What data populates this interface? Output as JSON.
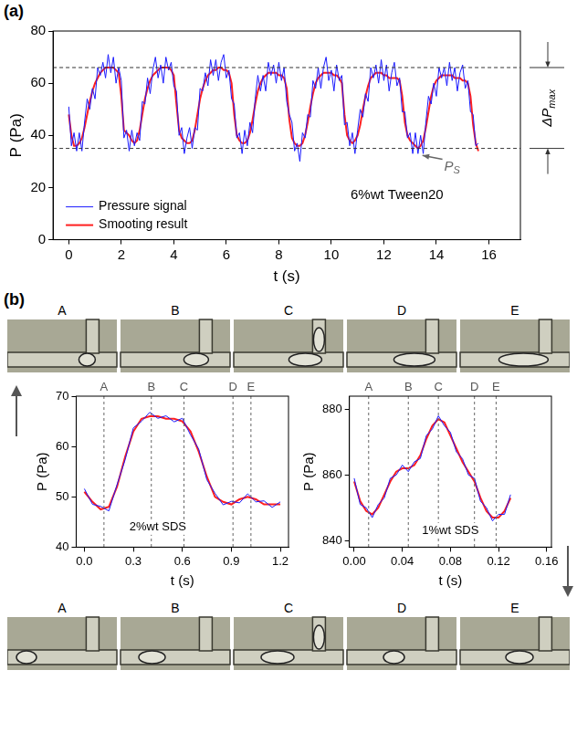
{
  "figure": {
    "panel_labels": [
      "(a)",
      "(b)"
    ],
    "photo_labels_top": [
      "A",
      "B",
      "C",
      "D",
      "E"
    ],
    "photo_labels_bottom": [
      "A",
      "B",
      "C",
      "D",
      "E"
    ]
  },
  "chart_data": [
    {
      "type": "line",
      "xlabel": "t (s)",
      "ylabel": "P (Pa)",
      "xlim": [
        -0.6,
        17.2
      ],
      "xticks": [
        0,
        2,
        4,
        6,
        8,
        10,
        12,
        14,
        16
      ],
      "ylim": [
        0,
        80
      ],
      "yticks": [
        0,
        20,
        40,
        60,
        80
      ],
      "grid": false,
      "legend": "lower left",
      "hlines": [
        66,
        35
      ],
      "annotations": [
        {
          "text": "6%wt Tween20",
          "x": 12.5,
          "y": 17
        },
        {
          "text": "P",
          "subscript": "S",
          "x": 14.3,
          "y": 28,
          "arrow_to": [
            13.4,
            33
          ]
        },
        {
          "text": "ΔP",
          "subscript": "max",
          "between": [
            35,
            66
          ]
        }
      ],
      "x": [
        0,
        0.1,
        0.2,
        0.3,
        0.4,
        0.5,
        0.6,
        0.7,
        0.8,
        0.9,
        1,
        1.1,
        1.2,
        1.3,
        1.4,
        1.5,
        1.6,
        1.7,
        1.8,
        1.9,
        2,
        2.1,
        2.2,
        2.3,
        2.4,
        2.5,
        2.6,
        2.7,
        2.8,
        2.9,
        3,
        3.1,
        3.2,
        3.3,
        3.4,
        3.5,
        3.6,
        3.7,
        3.8,
        3.9,
        4,
        4.1,
        4.2,
        4.3,
        4.4,
        4.5,
        4.6,
        4.7,
        4.8,
        4.9,
        5,
        5.1,
        5.2,
        5.3,
        5.4,
        5.5,
        5.6,
        5.7,
        5.8,
        5.9,
        6,
        6.1,
        6.2,
        6.3,
        6.4,
        6.5,
        6.6,
        6.7,
        6.8,
        6.9,
        7,
        7.1,
        7.2,
        7.3,
        7.4,
        7.5,
        7.6,
        7.7,
        7.8,
        7.9,
        8,
        8.1,
        8.2,
        8.3,
        8.4,
        8.5,
        8.6,
        8.7,
        8.8,
        8.9,
        9,
        9.1,
        9.2,
        9.3,
        9.4,
        9.5,
        9.6,
        9.7,
        9.8,
        9.9,
        10,
        10.1,
        10.2,
        10.3,
        10.4,
        10.5,
        10.6,
        10.7,
        10.8,
        10.9,
        11,
        11.1,
        11.2,
        11.3,
        11.4,
        11.5,
        11.6,
        11.7,
        11.8,
        11.9,
        12,
        12.1,
        12.2,
        12.3,
        12.4,
        12.5,
        12.6,
        12.7,
        12.8,
        12.9,
        13,
        13.1,
        13.2,
        13.3,
        13.4,
        13.5,
        13.6,
        13.7,
        13.8,
        13.9,
        14,
        14.1,
        14.2,
        14.3,
        14.4,
        14.5,
        14.6,
        14.7,
        14.8,
        14.9,
        15,
        15.1,
        15.2,
        15.3,
        15.4,
        15.5,
        15.6
      ],
      "series": [
        {
          "name": "Pressure signal",
          "color": "#1a1aff",
          "values": [
            51,
            36,
            41,
            34,
            41,
            34,
            45,
            54,
            50,
            58,
            54,
            66,
            63,
            68,
            62,
            71,
            64,
            70,
            60,
            66,
            61,
            39,
            42,
            34,
            42,
            36,
            41,
            38,
            53,
            52,
            62,
            56,
            65,
            70,
            62,
            67,
            60,
            70,
            65,
            68,
            59,
            57,
            40,
            43,
            33,
            39,
            43,
            35,
            43,
            42,
            58,
            57,
            64,
            59,
            69,
            63,
            69,
            61,
            68,
            71,
            62,
            65,
            54,
            52,
            39,
            41,
            33,
            42,
            36,
            45,
            41,
            54,
            63,
            57,
            63,
            57,
            68,
            63,
            67,
            60,
            68,
            61,
            66,
            53,
            48,
            45,
            34,
            37,
            30,
            41,
            39,
            48,
            47,
            61,
            58,
            66,
            58,
            66,
            70,
            61,
            65,
            57,
            67,
            61,
            63,
            44,
            45,
            36,
            41,
            33,
            42,
            50,
            47,
            56,
            53,
            66,
            62,
            67,
            60,
            69,
            61,
            67,
            57,
            64,
            68,
            59,
            62,
            49,
            49,
            39,
            41,
            33,
            41,
            33,
            40,
            33,
            45,
            55,
            52,
            60,
            55,
            66,
            62,
            66,
            59,
            68,
            61,
            66,
            57,
            64,
            67,
            58,
            61,
            49,
            48,
            36,
            37
          ]
        },
        {
          "name": "Smooting result",
          "color": "#ff1f1f",
          "values": [
            48,
            40,
            36,
            36,
            37,
            39,
            43,
            48,
            53,
            57,
            60,
            62,
            64,
            65,
            66,
            66,
            66,
            66,
            65,
            64,
            55,
            42,
            41,
            40,
            38,
            37,
            38,
            42,
            48,
            54,
            58,
            61,
            63,
            64,
            65,
            66,
            66,
            66,
            66,
            65,
            63,
            52,
            42,
            39,
            38,
            37,
            37,
            38,
            42,
            48,
            54,
            58,
            61,
            63,
            64,
            65,
            65,
            66,
            66,
            65,
            65,
            64,
            60,
            48,
            40,
            38,
            37,
            37,
            38,
            41,
            46,
            52,
            57,
            60,
            62,
            63,
            64,
            64,
            64,
            64,
            63,
            63,
            62,
            58,
            46,
            39,
            37,
            36,
            36,
            37,
            40,
            45,
            51,
            56,
            60,
            62,
            63,
            64,
            64,
            64,
            64,
            63,
            63,
            62,
            60,
            48,
            40,
            38,
            37,
            38,
            40,
            44,
            50,
            55,
            59,
            62,
            63,
            64,
            64,
            64,
            63,
            63,
            62,
            62,
            62,
            62,
            61,
            55,
            45,
            40,
            38,
            37,
            36,
            35,
            36,
            38,
            43,
            49,
            55,
            59,
            61,
            62,
            63,
            63,
            63,
            63,
            63,
            62,
            62,
            62,
            61,
            61,
            60,
            55,
            44,
            37,
            34
          ]
        }
      ]
    },
    {
      "type": "line",
      "xlabel": "t (s)",
      "ylabel": "P (Pa)",
      "xlim": [
        -0.05,
        1.25
      ],
      "xticks": [
        {
          "value": 0,
          "label": "0.0"
        },
        0.3,
        0.6,
        0.9,
        1.2
      ],
      "ylim": [
        40,
        70
      ],
      "yticks": [
        40,
        50,
        60,
        70
      ],
      "grid": false,
      "markers": [
        {
          "label": "A",
          "x": 0.12
        },
        {
          "label": "B",
          "x": 0.41
        },
        {
          "label": "C",
          "x": 0.61
        },
        {
          "label": "D",
          "x": 0.91
        },
        {
          "label": "E",
          "x": 1.02
        }
      ],
      "annotations": [
        {
          "text": "2%wt SDS",
          "x": 0.45,
          "y": 44
        }
      ],
      "x": [
        0,
        0.05,
        0.1,
        0.15,
        0.2,
        0.25,
        0.3,
        0.35,
        0.4,
        0.45,
        0.5,
        0.55,
        0.6,
        0.65,
        0.7,
        0.75,
        0.8,
        0.85,
        0.9,
        0.95,
        1,
        1.05,
        1.1,
        1.15,
        1.2
      ],
      "series": [
        {
          "name": "Pressure signal",
          "color": "#1a1aff",
          "values": [
            51.6,
            48.5,
            48.1,
            47.2,
            52.4,
            57.4,
            63.7,
            65.0,
            66.8,
            65.6,
            66.1,
            64.9,
            65.6,
            62.3,
            59.5,
            53.4,
            50.7,
            48.4,
            49.1,
            48.8,
            50.6,
            49.0,
            49.2,
            47.9,
            49.0
          ]
        },
        {
          "name": "Smooting result",
          "color": "#ff1f1f",
          "values": [
            51,
            49,
            47.5,
            48,
            52,
            58,
            63,
            65.5,
            66,
            66,
            65.5,
            65.5,
            65,
            63,
            59,
            54,
            50,
            49,
            48.5,
            49.5,
            50,
            49.5,
            48.5,
            48.5,
            48.5
          ]
        }
      ]
    },
    {
      "type": "line",
      "xlabel": "t (s)",
      "ylabel": "P (Pa)",
      "xlim": [
        -0.004,
        0.164
      ],
      "xticks": [
        {
          "value": 0,
          "label": "0.00"
        },
        0.04,
        0.08,
        0.12,
        0.16
      ],
      "ylim": [
        838,
        884
      ],
      "yticks": [
        840,
        860,
        880
      ],
      "grid": false,
      "markers": [
        {
          "label": "A",
          "x": 0.012
        },
        {
          "label": "B",
          "x": 0.045
        },
        {
          "label": "C",
          "x": 0.07
        },
        {
          "label": "D",
          "x": 0.1
        },
        {
          "label": "E",
          "x": 0.118
        }
      ],
      "annotations": [
        {
          "text": "1%wt SDS",
          "x": 0.08,
          "y": 843
        }
      ],
      "x": [
        0,
        0.005,
        0.01,
        0.015,
        0.02,
        0.025,
        0.03,
        0.035,
        0.04,
        0.045,
        0.05,
        0.055,
        0.06,
        0.065,
        0.07,
        0.075,
        0.08,
        0.085,
        0.09,
        0.095,
        0.1,
        0.105,
        0.11,
        0.115,
        0.12,
        0.125,
        0.13
      ],
      "series": [
        {
          "name": "Pressure signal",
          "color": "#1a1aff",
          "values": [
            859,
            851,
            850,
            847,
            851,
            853,
            859,
            860,
            863,
            861,
            864,
            865,
            872,
            874,
            878,
            875,
            873,
            867,
            865,
            860,
            859,
            852,
            850,
            846,
            848,
            848,
            854
          ]
        },
        {
          "name": "Smooting result",
          "color": "#ff1f1f",
          "values": [
            858,
            852,
            849,
            848,
            850,
            854,
            858,
            861,
            862,
            862,
            863,
            866,
            871,
            875,
            877,
            876,
            872,
            868,
            864,
            861,
            858,
            853,
            849,
            847,
            847,
            849,
            853
          ]
        }
      ]
    }
  ]
}
